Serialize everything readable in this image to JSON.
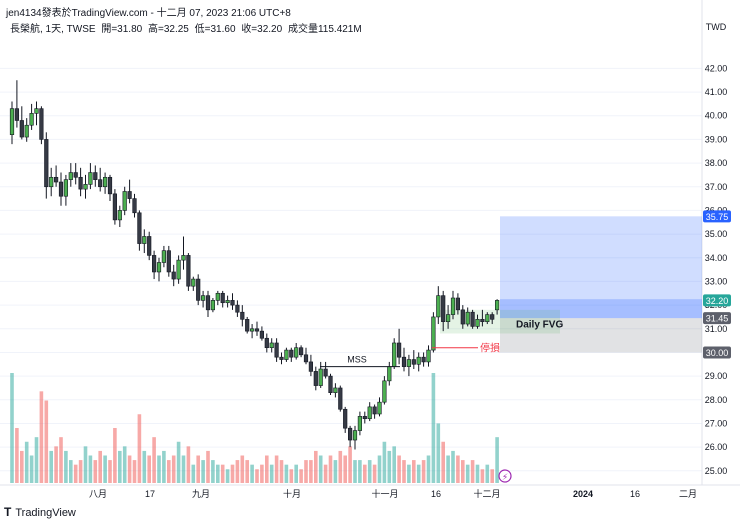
{
  "header": {
    "title": "jen4134發表於TradingView.com - 十二月 07, 2023 21:06 UTC+8",
    "symbol": "長榮航, 1天, TWSE",
    "open": "開=31.80",
    "high": "高=32.25",
    "low": "低=31.60",
    "close": "收=32.20",
    "volume": "成交量115.421M"
  },
  "footer": {
    "logo_mark": "T",
    "logo_text": "TradingView"
  },
  "chart_data": {
    "type": "candlestick",
    "currency": "TWD",
    "ylim": [
      24.4,
      43.2
    ],
    "y_ticks": [
      25.0,
      26.0,
      27.0,
      28.0,
      29.0,
      30.0,
      31.0,
      32.0,
      33.0,
      34.0,
      35.0,
      36.0,
      37.0,
      38.0,
      39.0,
      40.0,
      41.0,
      42.0
    ],
    "x_tick_labels": [
      "八月",
      "17",
      "九月",
      "十月",
      "十一月",
      "16",
      "十二月",
      "2024",
      "16",
      "二月"
    ],
    "price_labels": [
      {
        "value": "35.75",
        "color": "#2962ff"
      },
      {
        "value": "32.20",
        "color": "#26a69a"
      },
      {
        "value": "31.45",
        "color": "#5d606b"
      },
      {
        "value": "30.00",
        "color": "#5d606b"
      }
    ],
    "annotations": {
      "mss": "MSS",
      "fvg": "Daily FVG",
      "stop": "停損"
    },
    "levels": {
      "entry": 31.45,
      "target": 35.75,
      "stop_zone": 30.0,
      "stop_line": 30.2,
      "mss": 29.4,
      "fvg_low": 30.8,
      "fvg_high": 31.8
    },
    "candles": [
      {
        "o": 39.2,
        "h": 40.6,
        "l": 38.8,
        "c": 40.3,
        "v": 24
      },
      {
        "o": 40.3,
        "h": 41.5,
        "l": 39.5,
        "c": 39.8,
        "v": 12
      },
      {
        "o": 39.8,
        "h": 40.4,
        "l": 39.0,
        "c": 39.1,
        "v": 7
      },
      {
        "o": 39.1,
        "h": 39.9,
        "l": 38.9,
        "c": 39.6,
        "v": 9
      },
      {
        "o": 39.6,
        "h": 40.5,
        "l": 39.4,
        "c": 40.1,
        "v": 6
      },
      {
        "o": 40.1,
        "h": 40.6,
        "l": 39.6,
        "c": 40.3,
        "v": 10
      },
      {
        "o": 40.3,
        "h": 40.4,
        "l": 38.8,
        "c": 39.0,
        "v": 20
      },
      {
        "o": 39.0,
        "h": 39.3,
        "l": 36.5,
        "c": 37.0,
        "v": 18
      },
      {
        "o": 37.0,
        "h": 37.8,
        "l": 36.6,
        "c": 37.4,
        "v": 7
      },
      {
        "o": 37.4,
        "h": 37.9,
        "l": 37.0,
        "c": 37.2,
        "v": 8
      },
      {
        "o": 37.2,
        "h": 37.6,
        "l": 36.2,
        "c": 36.6,
        "v": 10
      },
      {
        "o": 36.6,
        "h": 37.5,
        "l": 36.2,
        "c": 37.3,
        "v": 7
      },
      {
        "o": 37.3,
        "h": 38.0,
        "l": 37.0,
        "c": 37.6,
        "v": 5
      },
      {
        "o": 37.6,
        "h": 38.0,
        "l": 37.1,
        "c": 37.4,
        "v": 4
      },
      {
        "o": 37.4,
        "h": 37.8,
        "l": 36.6,
        "c": 36.9,
        "v": 5
      },
      {
        "o": 36.9,
        "h": 37.5,
        "l": 36.5,
        "c": 37.1,
        "v": 8
      },
      {
        "o": 37.1,
        "h": 38.0,
        "l": 36.9,
        "c": 37.6,
        "v": 6
      },
      {
        "o": 37.6,
        "h": 37.9,
        "l": 37.0,
        "c": 37.3,
        "v": 5
      },
      {
        "o": 37.3,
        "h": 37.8,
        "l": 36.8,
        "c": 37.0,
        "v": 7
      },
      {
        "o": 37.0,
        "h": 37.6,
        "l": 36.7,
        "c": 37.4,
        "v": 6
      },
      {
        "o": 37.4,
        "h": 37.5,
        "l": 36.4,
        "c": 36.7,
        "v": 5
      },
      {
        "o": 36.7,
        "h": 36.9,
        "l": 35.4,
        "c": 35.6,
        "v": 12
      },
      {
        "o": 35.6,
        "h": 36.2,
        "l": 35.3,
        "c": 36.0,
        "v": 7
      },
      {
        "o": 36.0,
        "h": 37.0,
        "l": 35.8,
        "c": 36.8,
        "v": 8
      },
      {
        "o": 36.8,
        "h": 37.3,
        "l": 36.3,
        "c": 36.5,
        "v": 6
      },
      {
        "o": 36.5,
        "h": 36.7,
        "l": 35.7,
        "c": 35.9,
        "v": 5
      },
      {
        "o": 35.9,
        "h": 36.0,
        "l": 34.3,
        "c": 34.6,
        "v": 15
      },
      {
        "o": 34.6,
        "h": 35.2,
        "l": 34.2,
        "c": 34.9,
        "v": 7
      },
      {
        "o": 34.9,
        "h": 35.1,
        "l": 33.9,
        "c": 34.1,
        "v": 6
      },
      {
        "o": 34.1,
        "h": 34.3,
        "l": 33.1,
        "c": 33.4,
        "v": 10
      },
      {
        "o": 33.4,
        "h": 34.0,
        "l": 33.0,
        "c": 33.8,
        "v": 6
      },
      {
        "o": 33.8,
        "h": 34.5,
        "l": 33.6,
        "c": 34.3,
        "v": 7
      },
      {
        "o": 34.3,
        "h": 34.5,
        "l": 33.2,
        "c": 33.4,
        "v": 5
      },
      {
        "o": 33.4,
        "h": 33.7,
        "l": 32.8,
        "c": 33.1,
        "v": 6
      },
      {
        "o": 33.1,
        "h": 34.1,
        "l": 32.9,
        "c": 33.9,
        "v": 9
      },
      {
        "o": 33.9,
        "h": 34.9,
        "l": 33.5,
        "c": 34.1,
        "v": 6
      },
      {
        "o": 34.1,
        "h": 34.2,
        "l": 32.6,
        "c": 32.8,
        "v": 8
      },
      {
        "o": 32.8,
        "h": 33.2,
        "l": 32.6,
        "c": 33.1,
        "v": 4
      },
      {
        "o": 33.1,
        "h": 33.3,
        "l": 32.0,
        "c": 32.2,
        "v": 6
      },
      {
        "o": 32.2,
        "h": 32.6,
        "l": 31.9,
        "c": 32.4,
        "v": 5
      },
      {
        "o": 32.4,
        "h": 32.6,
        "l": 31.5,
        "c": 31.8,
        "v": 7
      },
      {
        "o": 31.8,
        "h": 32.3,
        "l": 31.7,
        "c": 32.2,
        "v": 5
      },
      {
        "o": 32.2,
        "h": 32.6,
        "l": 32.0,
        "c": 32.5,
        "v": 4
      },
      {
        "o": 32.5,
        "h": 32.6,
        "l": 31.9,
        "c": 32.1,
        "v": 4
      },
      {
        "o": 32.1,
        "h": 32.4,
        "l": 31.9,
        "c": 32.2,
        "v": 3
      },
      {
        "o": 32.2,
        "h": 32.5,
        "l": 31.8,
        "c": 32.0,
        "v": 4
      },
      {
        "o": 32.0,
        "h": 32.2,
        "l": 31.5,
        "c": 31.7,
        "v": 5
      },
      {
        "o": 31.7,
        "h": 32.0,
        "l": 31.1,
        "c": 31.4,
        "v": 6
      },
      {
        "o": 31.4,
        "h": 31.5,
        "l": 30.8,
        "c": 30.9,
        "v": 5
      },
      {
        "o": 30.9,
        "h": 31.2,
        "l": 30.6,
        "c": 31.0,
        "v": 4
      },
      {
        "o": 31.0,
        "h": 31.3,
        "l": 30.7,
        "c": 30.9,
        "v": 3
      },
      {
        "o": 30.9,
        "h": 31.1,
        "l": 30.5,
        "c": 30.6,
        "v": 4
      },
      {
        "o": 30.6,
        "h": 30.8,
        "l": 30.0,
        "c": 30.2,
        "v": 6
      },
      {
        "o": 30.2,
        "h": 30.6,
        "l": 30.0,
        "c": 30.4,
        "v": 4
      },
      {
        "o": 30.4,
        "h": 30.6,
        "l": 29.6,
        "c": 29.8,
        "v": 6
      },
      {
        "o": 29.8,
        "h": 30.0,
        "l": 29.5,
        "c": 29.7,
        "v": 5
      },
      {
        "o": 29.7,
        "h": 30.2,
        "l": 29.6,
        "c": 30.1,
        "v": 4
      },
      {
        "o": 30.1,
        "h": 30.2,
        "l": 29.6,
        "c": 29.8,
        "v": 3
      },
      {
        "o": 29.8,
        "h": 30.4,
        "l": 29.7,
        "c": 30.2,
        "v": 4
      },
      {
        "o": 30.2,
        "h": 30.3,
        "l": 29.8,
        "c": 29.9,
        "v": 3
      },
      {
        "o": 29.9,
        "h": 30.2,
        "l": 29.5,
        "c": 29.6,
        "v": 5
      },
      {
        "o": 29.6,
        "h": 29.9,
        "l": 29.0,
        "c": 29.2,
        "v": 5
      },
      {
        "o": 29.2,
        "h": 29.4,
        "l": 28.4,
        "c": 28.6,
        "v": 7
      },
      {
        "o": 28.6,
        "h": 29.6,
        "l": 28.5,
        "c": 29.3,
        "v": 6
      },
      {
        "o": 29.3,
        "h": 29.6,
        "l": 28.9,
        "c": 29.0,
        "v": 4
      },
      {
        "o": 29.0,
        "h": 29.1,
        "l": 28.2,
        "c": 28.3,
        "v": 6
      },
      {
        "o": 28.3,
        "h": 28.7,
        "l": 28.1,
        "c": 28.5,
        "v": 5
      },
      {
        "o": 28.5,
        "h": 28.6,
        "l": 27.5,
        "c": 27.6,
        "v": 7
      },
      {
        "o": 27.6,
        "h": 27.7,
        "l": 26.6,
        "c": 26.8,
        "v": 6
      },
      {
        "o": 26.8,
        "h": 26.9,
        "l": 26.0,
        "c": 26.3,
        "v": 8
      },
      {
        "o": 26.3,
        "h": 26.9,
        "l": 25.9,
        "c": 26.7,
        "v": 5
      },
      {
        "o": 26.7,
        "h": 27.5,
        "l": 26.5,
        "c": 27.3,
        "v": 5
      },
      {
        "o": 27.3,
        "h": 27.5,
        "l": 27.0,
        "c": 27.2,
        "v": 4
      },
      {
        "o": 27.2,
        "h": 27.9,
        "l": 27.1,
        "c": 27.7,
        "v": 5
      },
      {
        "o": 27.7,
        "h": 27.8,
        "l": 27.2,
        "c": 27.4,
        "v": 4
      },
      {
        "o": 27.4,
        "h": 28.1,
        "l": 27.3,
        "c": 27.9,
        "v": 6
      },
      {
        "o": 27.9,
        "h": 29.0,
        "l": 27.8,
        "c": 28.8,
        "v": 9
      },
      {
        "o": 28.8,
        "h": 29.6,
        "l": 28.6,
        "c": 29.4,
        "v": 7
      },
      {
        "o": 29.4,
        "h": 30.6,
        "l": 29.3,
        "c": 30.4,
        "v": 8
      },
      {
        "o": 30.4,
        "h": 31.0,
        "l": 29.5,
        "c": 29.8,
        "v": 6
      },
      {
        "o": 29.8,
        "h": 30.2,
        "l": 29.2,
        "c": 29.4,
        "v": 5
      },
      {
        "o": 29.4,
        "h": 29.9,
        "l": 29.0,
        "c": 29.7,
        "v": 4
      },
      {
        "o": 29.7,
        "h": 30.1,
        "l": 29.3,
        "c": 29.5,
        "v": 5
      },
      {
        "o": 29.5,
        "h": 30.0,
        "l": 29.2,
        "c": 29.8,
        "v": 4
      },
      {
        "o": 29.8,
        "h": 30.0,
        "l": 29.4,
        "c": 29.6,
        "v": 5
      },
      {
        "o": 29.6,
        "h": 30.3,
        "l": 29.4,
        "c": 30.1,
        "v": 6
      },
      {
        "o": 30.1,
        "h": 31.7,
        "l": 30.0,
        "c": 31.5,
        "v": 24
      },
      {
        "o": 31.5,
        "h": 32.8,
        "l": 31.2,
        "c": 32.4,
        "v": 13
      },
      {
        "o": 32.4,
        "h": 32.6,
        "l": 30.9,
        "c": 31.3,
        "v": 9
      },
      {
        "o": 31.3,
        "h": 32.0,
        "l": 31.0,
        "c": 31.6,
        "v": 6
      },
      {
        "o": 31.6,
        "h": 32.6,
        "l": 31.4,
        "c": 32.3,
        "v": 7
      },
      {
        "o": 32.3,
        "h": 32.5,
        "l": 31.6,
        "c": 31.8,
        "v": 6
      },
      {
        "o": 31.8,
        "h": 32.0,
        "l": 31.0,
        "c": 31.2,
        "v": 5
      },
      {
        "o": 31.2,
        "h": 31.9,
        "l": 31.1,
        "c": 31.7,
        "v": 4
      },
      {
        "o": 31.7,
        "h": 31.8,
        "l": 31.0,
        "c": 31.1,
        "v": 5
      },
      {
        "o": 31.1,
        "h": 31.6,
        "l": 31.0,
        "c": 31.4,
        "v": 4
      },
      {
        "o": 31.4,
        "h": 31.8,
        "l": 31.1,
        "c": 31.3,
        "v": 3
      },
      {
        "o": 31.3,
        "h": 31.7,
        "l": 31.2,
        "c": 31.6,
        "v": 4
      },
      {
        "o": 31.6,
        "h": 31.7,
        "l": 31.2,
        "c": 31.4,
        "v": 3
      },
      {
        "o": 31.8,
        "h": 32.25,
        "l": 31.6,
        "c": 32.2,
        "v": 10
      }
    ]
  }
}
